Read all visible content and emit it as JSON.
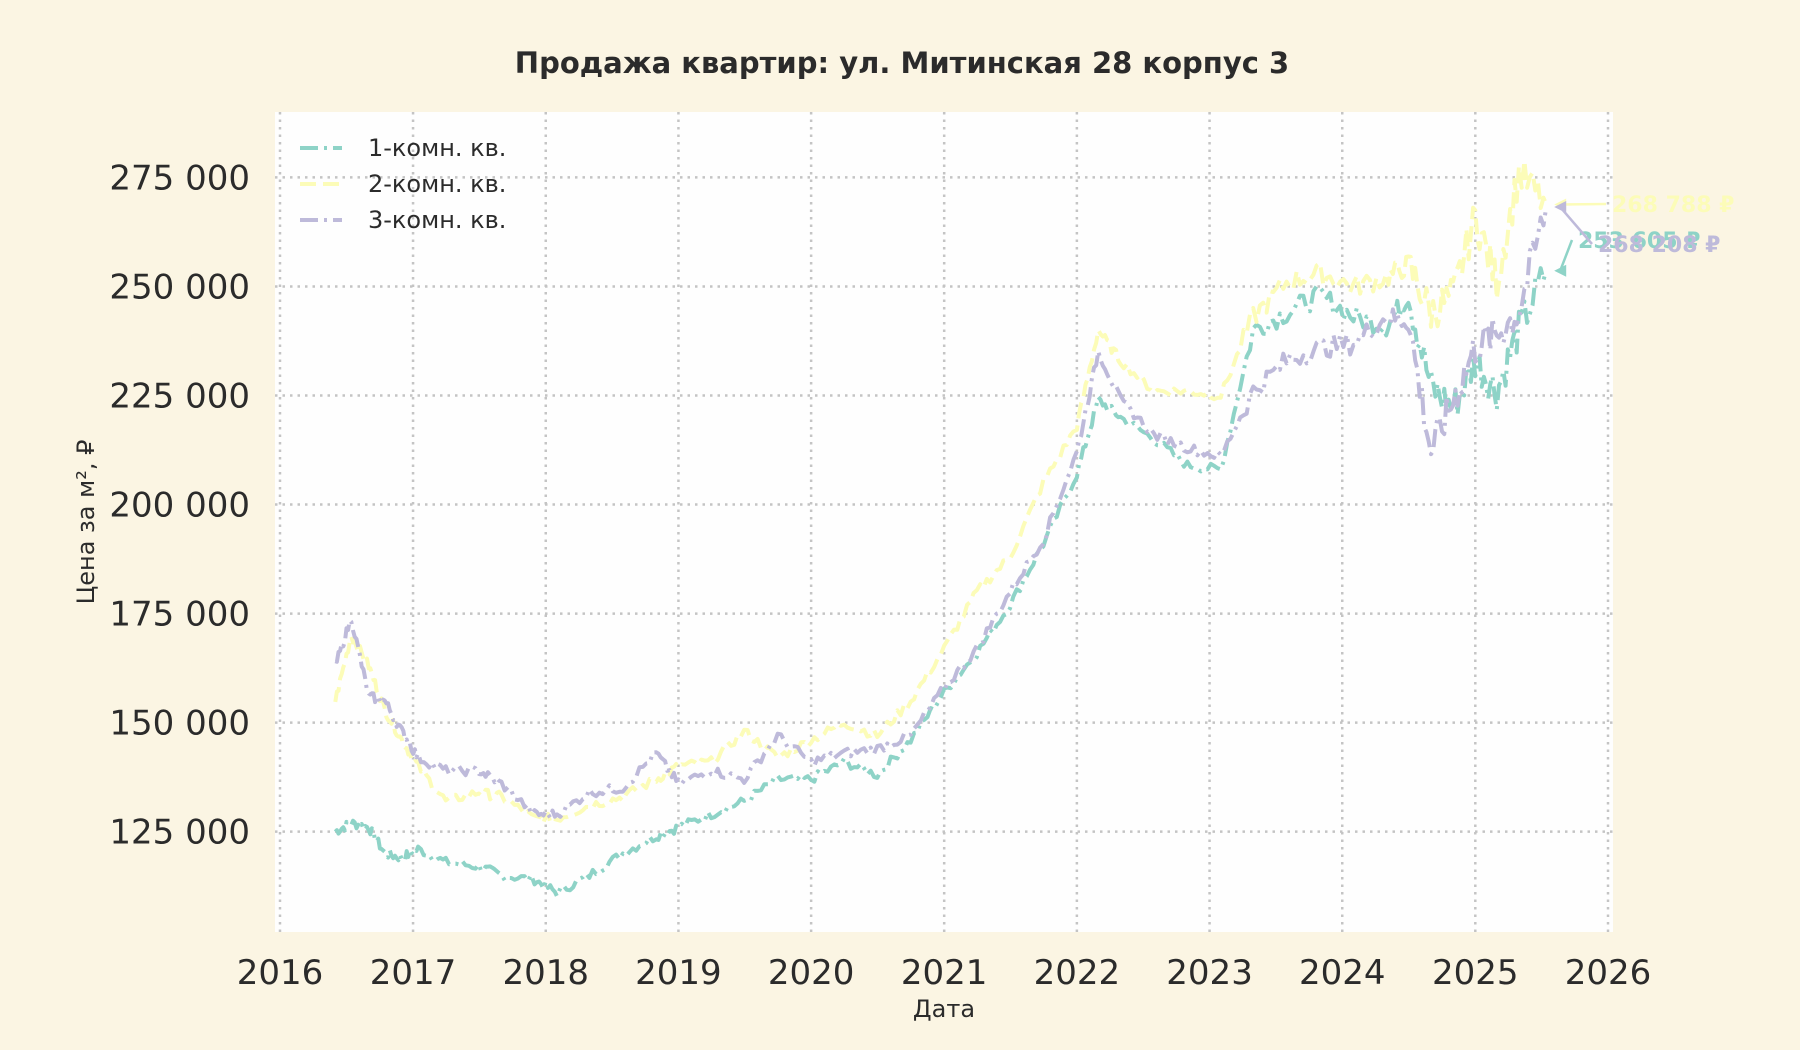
{
  "chart_data": {
    "type": "line",
    "title": "Продажа квартир: ул. Митинская 28 корпус 3",
    "xlabel": "Дата",
    "ylabel": "Цена за м², ₽",
    "xlim": [
      "2016-01-01",
      "2026-01-01"
    ],
    "ylim": [
      102000,
      290000
    ],
    "x_ticks": [
      "2016",
      "2017",
      "2018",
      "2019",
      "2020",
      "2021",
      "2022",
      "2023",
      "2024",
      "2025",
      "2026"
    ],
    "y_ticks": [
      125000,
      150000,
      175000,
      200000,
      225000,
      250000,
      275000
    ],
    "y_tick_labels": [
      "125 000",
      "150 000",
      "175 000",
      "200 000",
      "225 000",
      "250 000",
      "275 000"
    ],
    "grid": true,
    "legend_position": "top-left",
    "series": [
      {
        "name": "1-комн. кв.",
        "color": "#8ed3c7",
        "dash": "dash-dot",
        "points": [
          [
            "2016-06-01",
            125000
          ],
          [
            "2016-07-15",
            127000
          ],
          [
            "2016-09-01",
            126000
          ],
          [
            "2016-10-15",
            120000
          ],
          [
            "2016-12-01",
            119000
          ],
          [
            "2017-01-15",
            121000
          ],
          [
            "2017-04-01",
            118000
          ],
          [
            "2017-07-01",
            117000
          ],
          [
            "2017-09-01",
            115000
          ],
          [
            "2017-12-01",
            114000
          ],
          [
            "2018-02-01",
            111000
          ],
          [
            "2018-05-01",
            115000
          ],
          [
            "2018-08-01",
            120000
          ],
          [
            "2018-11-01",
            124000
          ],
          [
            "2019-01-01",
            126000
          ],
          [
            "2019-04-01",
            129000
          ],
          [
            "2019-07-01",
            132000
          ],
          [
            "2019-10-01",
            137000
          ],
          [
            "2020-01-01",
            137000
          ],
          [
            "2020-04-01",
            141000
          ],
          [
            "2020-07-01",
            138000
          ],
          [
            "2020-10-01",
            146000
          ],
          [
            "2021-01-01",
            157000
          ],
          [
            "2021-04-01",
            166000
          ],
          [
            "2021-07-01",
            177000
          ],
          [
            "2021-10-01",
            191000
          ],
          [
            "2022-01-01",
            207000
          ],
          [
            "2022-03-01",
            224000
          ],
          [
            "2022-05-01",
            220000
          ],
          [
            "2022-08-01",
            215000
          ],
          [
            "2022-11-01",
            209000
          ],
          [
            "2023-02-01",
            208000
          ],
          [
            "2023-05-01",
            240000
          ],
          [
            "2023-08-01",
            244000
          ],
          [
            "2023-11-01",
            248000
          ],
          [
            "2024-02-01",
            243000
          ],
          [
            "2024-05-01",
            241000
          ],
          [
            "2024-07-01",
            248000
          ],
          [
            "2024-09-01",
            227000
          ],
          [
            "2024-11-01",
            222000
          ],
          [
            "2025-01-01",
            233000
          ],
          [
            "2025-03-01",
            226000
          ],
          [
            "2025-05-01",
            240000
          ],
          [
            "2025-07-15",
            253605
          ]
        ]
      },
      {
        "name": "2-комн. кв.",
        "color": "#fcfcb8",
        "dash": "dashed",
        "points": [
          [
            "2016-06-01",
            155000
          ],
          [
            "2016-07-15",
            170000
          ],
          [
            "2016-09-01",
            163000
          ],
          [
            "2016-10-15",
            153000
          ],
          [
            "2016-12-01",
            146000
          ],
          [
            "2017-01-15",
            140000
          ],
          [
            "2017-04-01",
            132000
          ],
          [
            "2017-07-01",
            134000
          ],
          [
            "2017-09-01",
            133000
          ],
          [
            "2017-12-01",
            128000
          ],
          [
            "2018-02-01",
            128000
          ],
          [
            "2018-05-01",
            131000
          ],
          [
            "2018-08-01",
            133000
          ],
          [
            "2018-11-01",
            137000
          ],
          [
            "2019-01-01",
            140000
          ],
          [
            "2019-04-01",
            141000
          ],
          [
            "2019-07-01",
            148000
          ],
          [
            "2019-10-01",
            142000
          ],
          [
            "2020-01-01",
            146000
          ],
          [
            "2020-04-01",
            150000
          ],
          [
            "2020-07-01",
            147000
          ],
          [
            "2020-10-01",
            155000
          ],
          [
            "2021-01-01",
            167000
          ],
          [
            "2021-04-01",
            180000
          ],
          [
            "2021-07-01",
            188000
          ],
          [
            "2021-10-01",
            205000
          ],
          [
            "2022-01-01",
            218000
          ],
          [
            "2022-03-01",
            240000
          ],
          [
            "2022-05-01",
            233000
          ],
          [
            "2022-08-01",
            226000
          ],
          [
            "2022-11-01",
            226000
          ],
          [
            "2023-02-01",
            225000
          ],
          [
            "2023-05-01",
            243000
          ],
          [
            "2023-08-01",
            251000
          ],
          [
            "2023-11-01",
            253000
          ],
          [
            "2024-02-01",
            250000
          ],
          [
            "2024-05-01",
            252000
          ],
          [
            "2024-07-01",
            255000
          ],
          [
            "2024-09-01",
            244000
          ],
          [
            "2024-11-01",
            248000
          ],
          [
            "2025-01-01",
            266000
          ],
          [
            "2025-03-01",
            251000
          ],
          [
            "2025-05-01",
            276000
          ],
          [
            "2025-07-15",
            268788
          ]
        ]
      },
      {
        "name": "3-комн. кв.",
        "color": "#bebada",
        "dash": "dash-dot",
        "points": [
          [
            "2016-06-01",
            163000
          ],
          [
            "2016-07-15",
            174000
          ],
          [
            "2016-09-01",
            156000
          ],
          [
            "2016-10-15",
            155000
          ],
          [
            "2016-12-01",
            148000
          ],
          [
            "2017-01-15",
            142000
          ],
          [
            "2017-04-01",
            139000
          ],
          [
            "2017-07-01",
            139000
          ],
          [
            "2017-09-01",
            136000
          ],
          [
            "2017-12-01",
            129000
          ],
          [
            "2018-02-01",
            129000
          ],
          [
            "2018-05-01",
            134000
          ],
          [
            "2018-08-01",
            135000
          ],
          [
            "2018-11-01",
            143000
          ],
          [
            "2019-01-01",
            136000
          ],
          [
            "2019-04-01",
            139000
          ],
          [
            "2019-07-01",
            137000
          ],
          [
            "2019-10-01",
            147000
          ],
          [
            "2020-01-01",
            141000
          ],
          [
            "2020-04-01",
            143000
          ],
          [
            "2020-07-01",
            144000
          ],
          [
            "2020-10-01",
            147000
          ],
          [
            "2021-01-01",
            158000
          ],
          [
            "2021-04-01",
            167000
          ],
          [
            "2021-07-01",
            180000
          ],
          [
            "2021-10-01",
            192000
          ],
          [
            "2022-01-01",
            212000
          ],
          [
            "2022-03-01",
            235000
          ],
          [
            "2022-05-01",
            224000
          ],
          [
            "2022-08-01",
            216000
          ],
          [
            "2022-11-01",
            213000
          ],
          [
            "2023-02-01",
            211000
          ],
          [
            "2023-05-01",
            226000
          ],
          [
            "2023-08-01",
            233000
          ],
          [
            "2023-11-01",
            236000
          ],
          [
            "2024-02-01",
            237000
          ],
          [
            "2024-05-01",
            243000
          ],
          [
            "2024-07-01",
            242000
          ],
          [
            "2024-09-01",
            212000
          ],
          [
            "2024-11-01",
            224000
          ],
          [
            "2025-01-01",
            236000
          ],
          [
            "2025-03-01",
            239000
          ],
          [
            "2025-05-01",
            244000
          ],
          [
            "2025-07-15",
            268208
          ]
        ]
      }
    ],
    "annotations": [
      {
        "series": 1,
        "text": "268 788 ₽",
        "color": "#fcfcb8"
      },
      {
        "series": 0,
        "text": "253 605 ₽",
        "color": "#8ed3c7"
      },
      {
        "series": 2,
        "text": "268 208 ₽",
        "color": "#bebada"
      }
    ]
  }
}
